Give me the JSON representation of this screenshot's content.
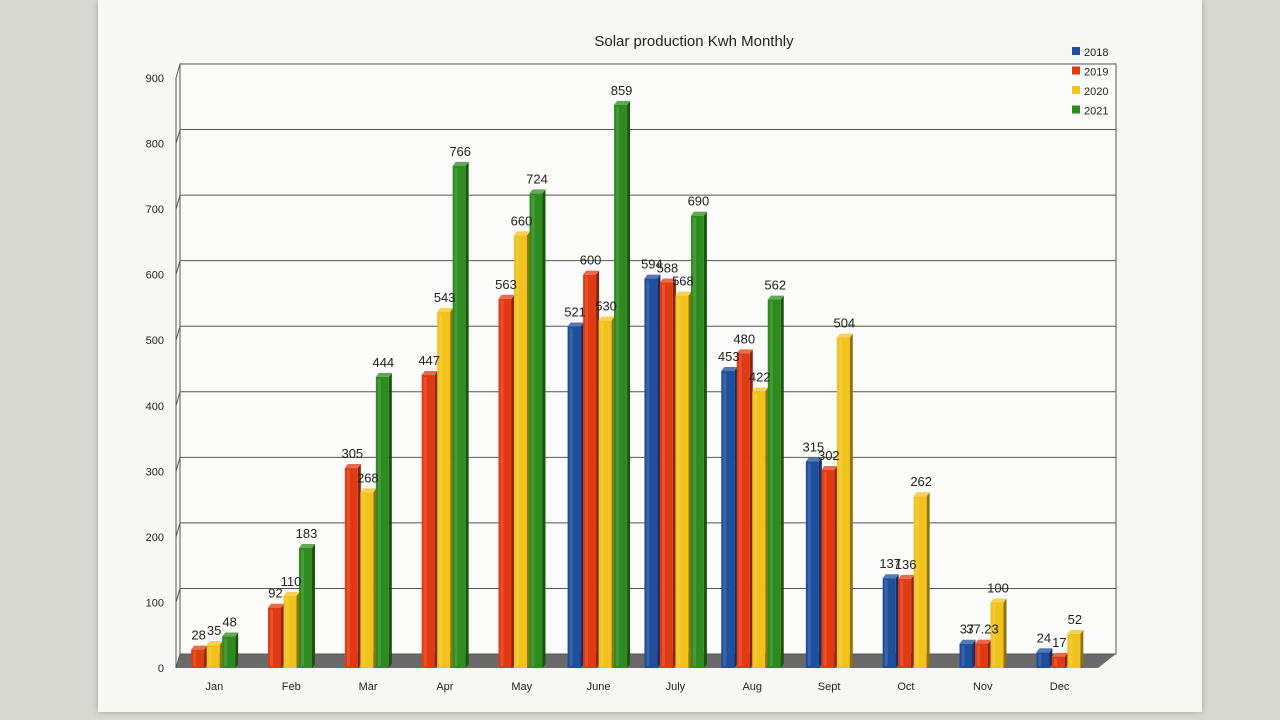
{
  "chart_data": {
    "type": "bar",
    "title": "Solar production Kwh Monthly",
    "xlabel": "",
    "ylabel": "",
    "ylim": [
      0,
      900
    ],
    "yticks": [
      0,
      100,
      200,
      300,
      400,
      500,
      600,
      700,
      800,
      900
    ],
    "grid": true,
    "legend_position": "top-right",
    "categories": [
      "Jan",
      "Feb",
      "Mar",
      "Apr",
      "May",
      "June",
      "July",
      "Aug",
      "Sept",
      "Oct",
      "Nov",
      "Dec"
    ],
    "series": [
      {
        "name": "2018",
        "color": "#1f4e9c",
        "values": [
          null,
          null,
          null,
          null,
          null,
          521,
          594,
          453,
          315,
          137,
          37,
          24
        ]
      },
      {
        "name": "2019",
        "color": "#e03a12",
        "values": [
          28,
          92,
          305,
          447,
          563,
          600,
          588,
          480,
          302,
          136,
          37.23,
          17
        ]
      },
      {
        "name": "2020",
        "color": "#f1c11c",
        "values": [
          35,
          110,
          268,
          543,
          660,
          530,
          568,
          422,
          504,
          262,
          100,
          52
        ]
      },
      {
        "name": "2021",
        "color": "#2e8b1f",
        "values": [
          48,
          183,
          444,
          766,
          724,
          859,
          690,
          562,
          null,
          null,
          null,
          null
        ]
      }
    ]
  }
}
